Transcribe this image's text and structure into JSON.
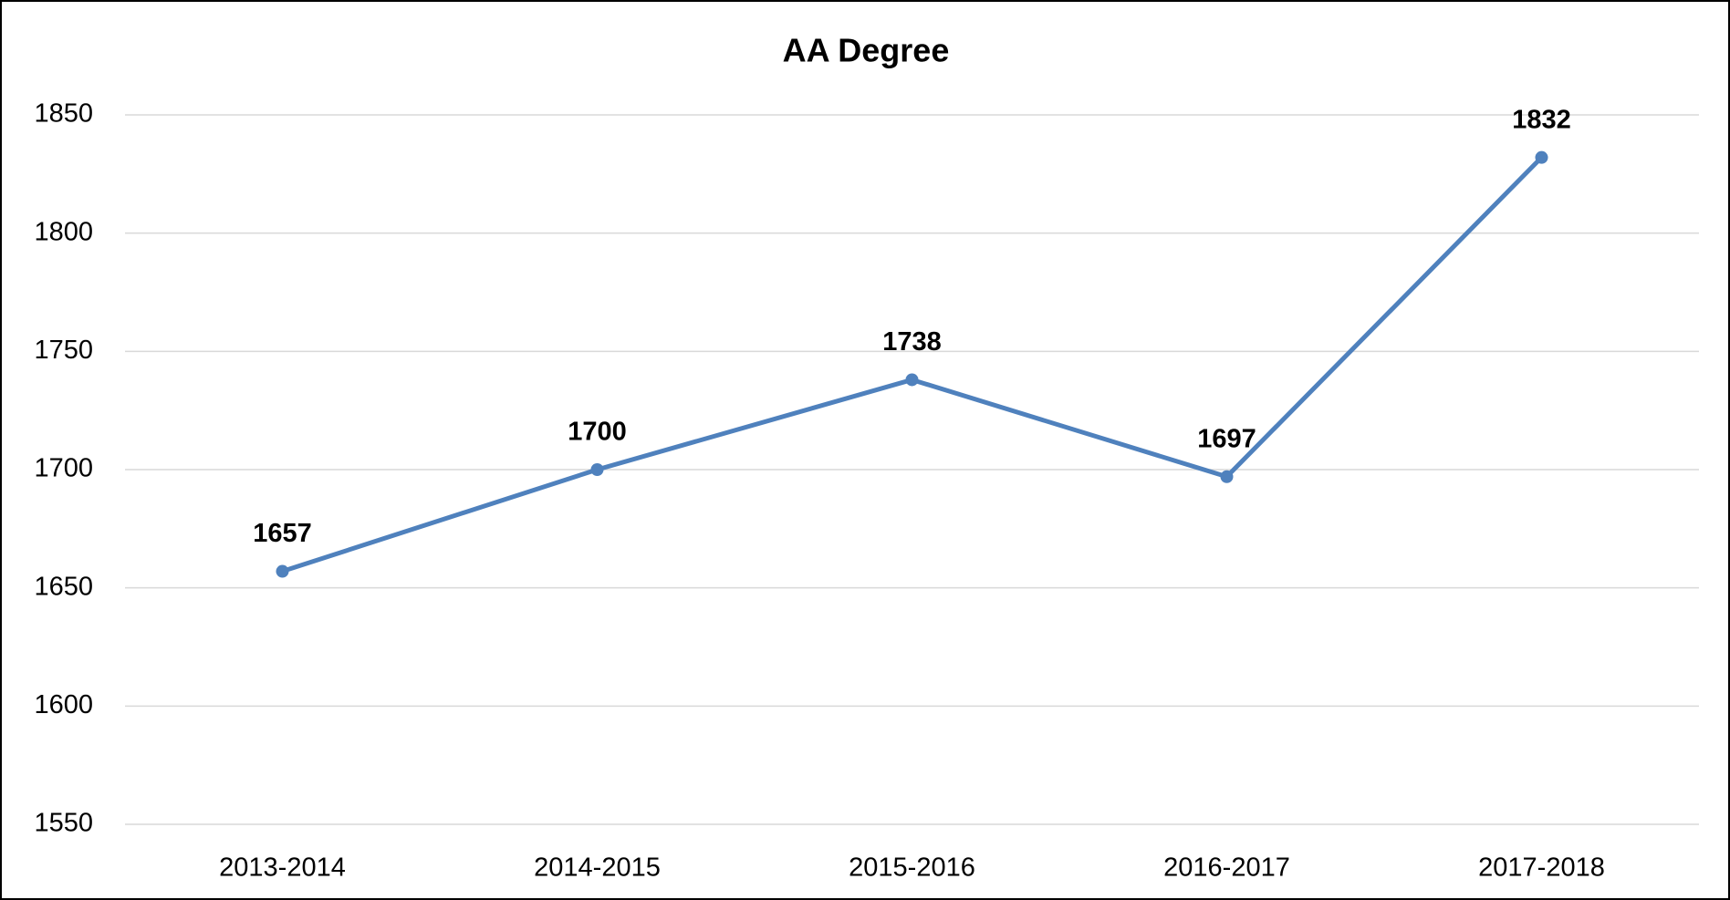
{
  "chart_data": {
    "type": "line",
    "title": "AA Degree",
    "categories": [
      "2013-2014",
      "2014-2015",
      "2015-2016",
      "2016-2017",
      "2017-2018"
    ],
    "values": [
      1657,
      1700,
      1738,
      1697,
      1832
    ],
    "color": "#4f81bd",
    "ylim": [
      1550,
      1850
    ],
    "yticks": [
      1550,
      1600,
      1650,
      1700,
      1750,
      1800,
      1850
    ],
    "grid": true
  }
}
